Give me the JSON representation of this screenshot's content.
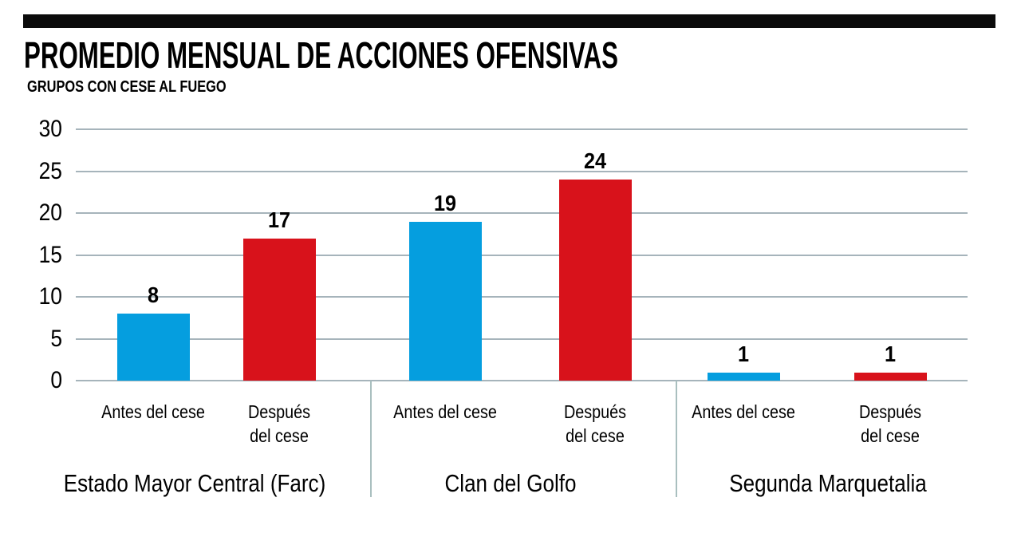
{
  "header": {
    "title": "PROMEDIO MENSUAL DE ACCIONES OFENSIVAS",
    "subtitle": "GRUPOS CON CESE AL FUEGO"
  },
  "colors": {
    "before_bar": "#059edf",
    "after_bar": "#d8121b",
    "gridline": "#a6b4bb",
    "divider": "#a9bfbf",
    "top_bar": "#0b0b0b",
    "text": "#000000",
    "background": "#ffffff"
  },
  "chart_data": {
    "type": "bar",
    "title": "PROMEDIO MENSUAL DE ACCIONES OFENSIVAS",
    "subtitle": "GRUPOS CON CESE AL FUEGO",
    "categories": [
      "Estado Mayor Central (Farc)",
      "Clan del Golfo",
      "Segunda Marquetalia"
    ],
    "series": [
      {
        "name": "Antes del cese",
        "label_lines": [
          "Antes del cese"
        ],
        "color": "#059edf",
        "values": [
          8,
          19,
          1
        ]
      },
      {
        "name": "Después del cese",
        "label_lines": [
          "Después",
          "del cese"
        ],
        "color": "#d8121b",
        "values": [
          17,
          24,
          1
        ]
      }
    ],
    "y_ticks": [
      0,
      5,
      10,
      15,
      20,
      25,
      30
    ],
    "ylim": [
      0,
      30
    ],
    "grid": true,
    "legend_position": "none"
  }
}
